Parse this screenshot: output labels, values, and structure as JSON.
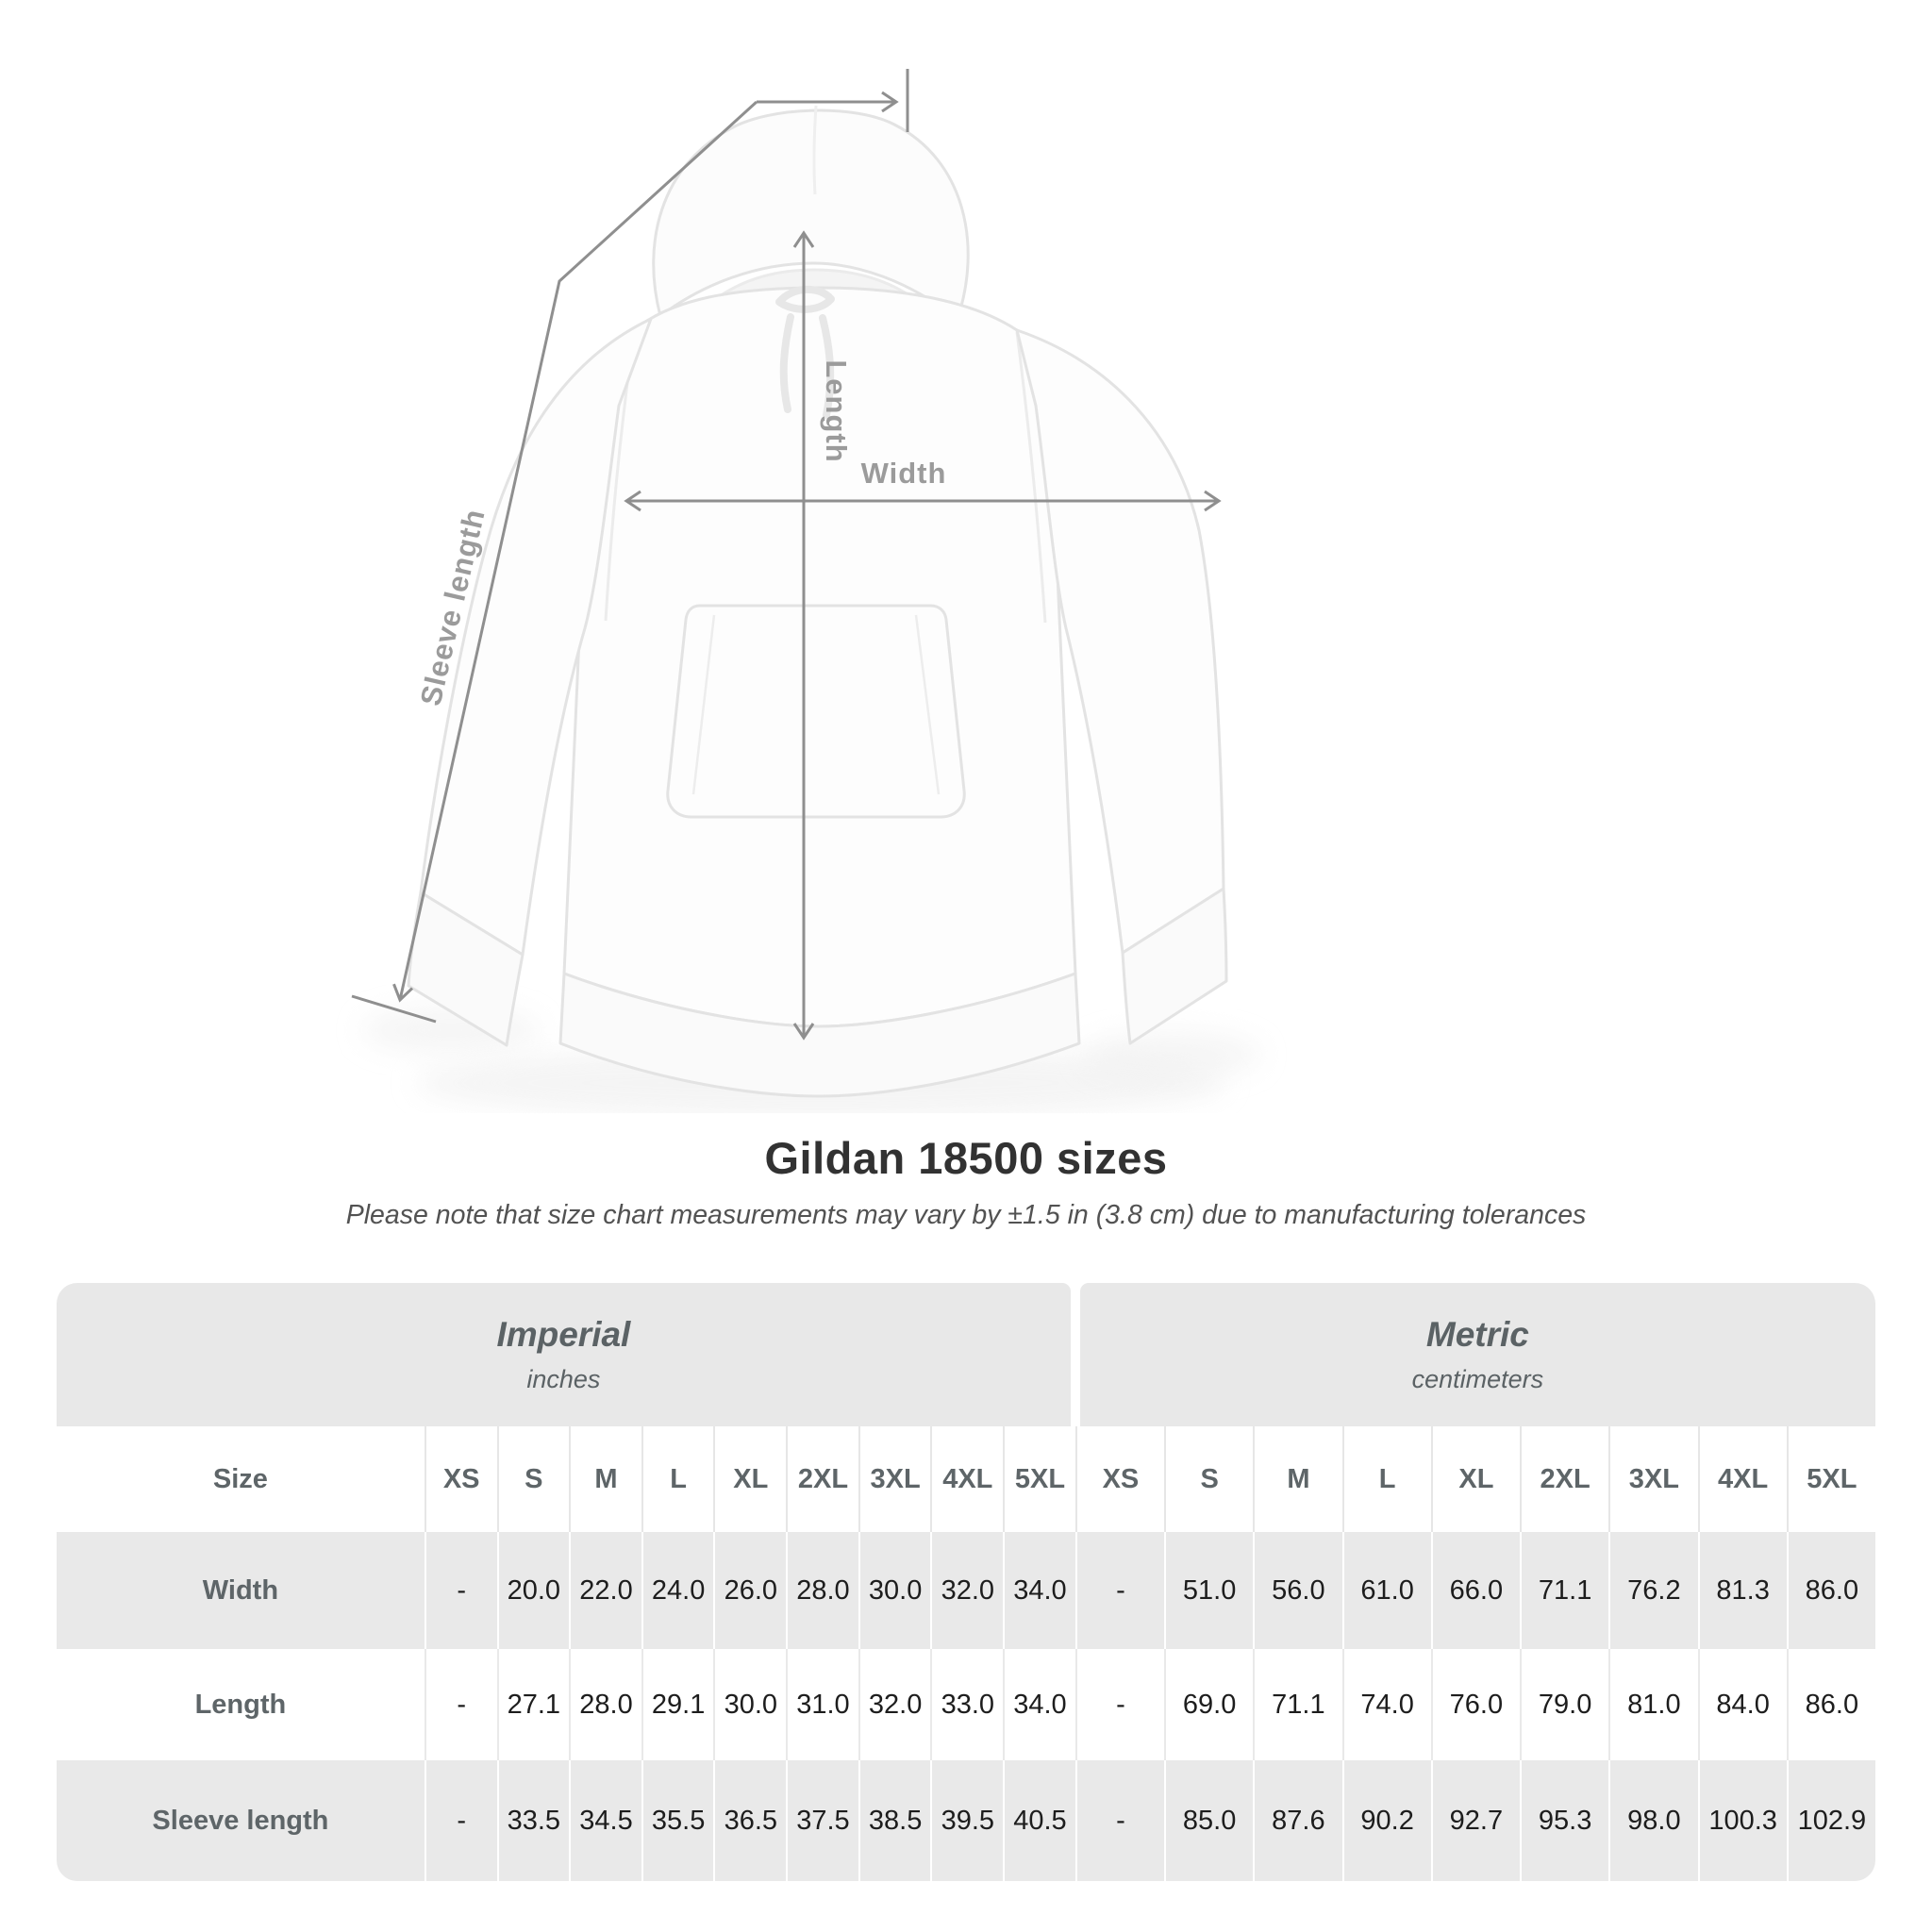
{
  "diagram": {
    "labels": {
      "length": "Length",
      "width": "Width",
      "sleeve_length": "Sleeve length"
    },
    "line_color": "#8f8f8f",
    "label_color": "#9b9b9b"
  },
  "heading": {
    "title": "Gildan 18500 sizes",
    "note": "Please note that size chart measurements may vary by ±1.5 in (3.8 cm) due to manufacturing tolerances"
  },
  "table": {
    "groups": [
      {
        "name": "Imperial",
        "unit": "inches"
      },
      {
        "name": "Metric",
        "unit": "centimeters"
      }
    ],
    "size_header": "Size",
    "sizes": [
      "XS",
      "S",
      "M",
      "L",
      "XL",
      "2XL",
      "3XL",
      "4XL",
      "5XL"
    ],
    "rows": [
      {
        "label": "Width",
        "imperial": [
          "-",
          "20.0",
          "22.0",
          "24.0",
          "26.0",
          "28.0",
          "30.0",
          "32.0",
          "34.0"
        ],
        "metric": [
          "-",
          "51.0",
          "56.0",
          "61.0",
          "66.0",
          "71.1",
          "76.2",
          "81.3",
          "86.0"
        ]
      },
      {
        "label": "Length",
        "imperial": [
          "-",
          "27.1",
          "28.0",
          "29.1",
          "30.0",
          "31.0",
          "32.0",
          "33.0",
          "34.0"
        ],
        "metric": [
          "-",
          "69.0",
          "71.1",
          "74.0",
          "76.0",
          "79.0",
          "81.0",
          "84.0",
          "86.0"
        ]
      },
      {
        "label": "Sleeve length",
        "imperial": [
          "-",
          "33.5",
          "34.5",
          "35.5",
          "36.5",
          "37.5",
          "38.5",
          "39.5",
          "40.5"
        ],
        "metric": [
          "-",
          "85.0",
          "87.6",
          "90.2",
          "92.7",
          "95.3",
          "98.0",
          "100.3",
          "102.9"
        ]
      }
    ],
    "colors": {
      "group_bg": "#e8e8e8",
      "stripe_bg": "#e9e9e9",
      "header_text": "#5e6568",
      "value_text": "#1d1d1d"
    }
  }
}
